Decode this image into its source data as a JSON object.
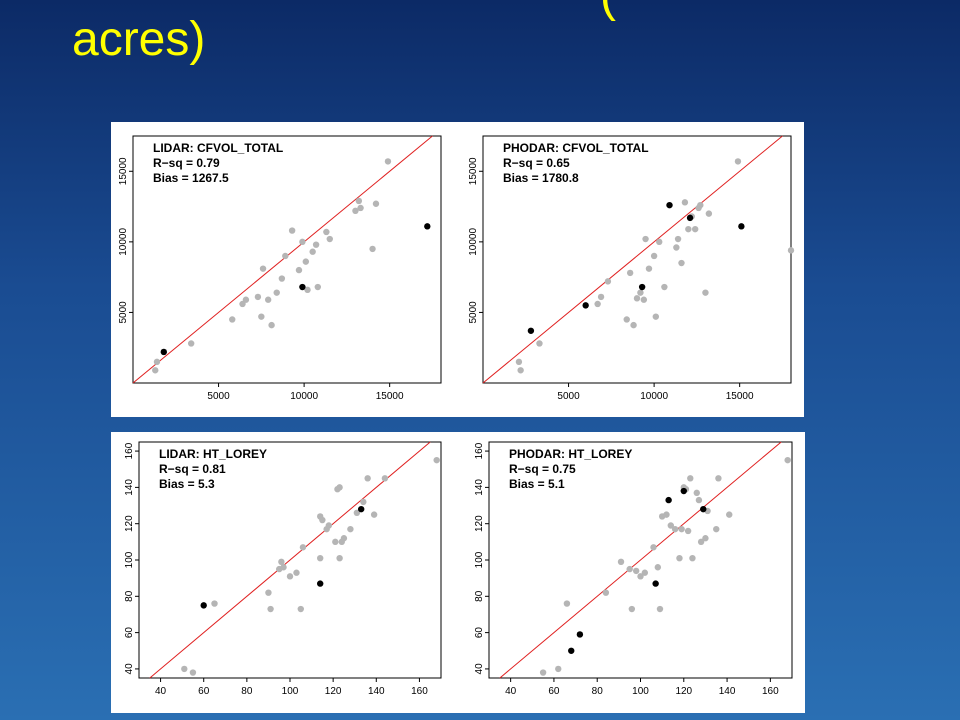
{
  "slide": {
    "title_fragment": "(",
    "title": "acres)"
  },
  "chart_data": [
    {
      "type": "scatter",
      "title": "LIDAR: CFVOL_TOTAL",
      "stats": [
        "R−sq = 0.79",
        "Bias = 1267.5"
      ],
      "xlim": [
        0,
        18000
      ],
      "ylim": [
        0,
        17500
      ],
      "xticks": [
        5000,
        10000,
        15000
      ],
      "yticks": [
        5000,
        10000,
        15000
      ],
      "reference_line": "1:1",
      "colors": {
        "observed": "#b5b5b5",
        "highlight": "#000000",
        "line": "#e02020"
      },
      "series": [
        {
          "name": "",
          "color": "#b5b5b5",
          "x": [
            1300,
            1400,
            3400,
            5800,
            6400,
            6600,
            7300,
            7500,
            7600,
            7900,
            8100,
            8400,
            8700,
            8900,
            9300,
            9700,
            9900,
            10100,
            10200,
            10500,
            10700,
            10800,
            11300,
            11500,
            13000,
            13200,
            13300,
            14000,
            14200,
            14900
          ],
          "y": [
            900,
            1500,
            2800,
            4500,
            5600,
            5900,
            6100,
            4700,
            8100,
            5900,
            4100,
            6400,
            7400,
            9000,
            10800,
            8000,
            10000,
            8600,
            6600,
            9300,
            9800,
            6800,
            10700,
            10200,
            12200,
            12900,
            12400,
            9500,
            12700,
            15700
          ]
        },
        {
          "name": "",
          "color": "#000000",
          "x": [
            1800,
            9900,
            17200
          ],
          "y": [
            2200,
            6800,
            11100
          ]
        }
      ]
    },
    {
      "type": "scatter",
      "title": "PHODAR: CFVOL_TOTAL",
      "stats": [
        "R−sq = 0.65",
        "Bias = 1780.8"
      ],
      "xlim": [
        0,
        18000
      ],
      "ylim": [
        0,
        17500
      ],
      "xticks": [
        5000,
        10000,
        15000
      ],
      "yticks": [
        5000,
        10000,
        15000
      ],
      "reference_line": "1:1",
      "colors": {
        "observed": "#b5b5b5",
        "highlight": "#000000",
        "line": "#e02020"
      },
      "series": [
        {
          "name": "",
          "color": "#b5b5b5",
          "x": [
            2100,
            2200,
            3300,
            6700,
            6900,
            7300,
            8400,
            8600,
            8800,
            9000,
            9200,
            9400,
            9500,
            9700,
            10000,
            10100,
            10300,
            10600,
            11300,
            11400,
            11600,
            11800,
            12000,
            12200,
            12400,
            12600,
            12700,
            13000,
            13200,
            14900,
            18000
          ],
          "y": [
            1500,
            900,
            2800,
            5600,
            6100,
            7200,
            4500,
            7800,
            4100,
            6000,
            6400,
            5900,
            10200,
            8100,
            9000,
            4700,
            10000,
            6800,
            9600,
            10200,
            8500,
            12800,
            10900,
            11800,
            10900,
            12400,
            12600,
            6400,
            12000,
            15700,
            9400
          ]
        },
        {
          "name": "",
          "color": "#000000",
          "x": [
            2800,
            6000,
            9300,
            10900,
            12100,
            15100
          ],
          "y": [
            3700,
            5500,
            6800,
            12600,
            11700,
            11100
          ]
        }
      ]
    },
    {
      "type": "scatter",
      "title": "LIDAR: HT_LOREY",
      "stats": [
        "R−sq = 0.81",
        "Bias = 5.3"
      ],
      "xlim": [
        30,
        170
      ],
      "ylim": [
        35,
        165
      ],
      "xticks": [
        40,
        60,
        80,
        100,
        120,
        140,
        160
      ],
      "yticks": [
        40,
        60,
        80,
        100,
        120,
        140,
        160
      ],
      "reference_line": "1:1",
      "colors": {
        "observed": "#b5b5b5",
        "highlight": "#000000",
        "line": "#e02020"
      },
      "series": [
        {
          "name": "",
          "color": "#b5b5b5",
          "x": [
            51,
            55,
            65,
            90,
            91,
            95,
            96,
            97,
            100,
            103,
            105,
            106,
            114,
            114,
            115,
            117,
            118,
            121,
            122,
            123,
            123,
            124,
            125,
            128,
            131,
            134,
            136,
            139,
            144,
            168
          ],
          "y": [
            40,
            38,
            76,
            82,
            73,
            95,
            99,
            96,
            91,
            93,
            73,
            107,
            124,
            101,
            122,
            117,
            119,
            110,
            139,
            140,
            101,
            110,
            112,
            117,
            126,
            132,
            145,
            125,
            145,
            155
          ]
        },
        {
          "name": "",
          "color": "#000000",
          "x": [
            60,
            114,
            133
          ],
          "y": [
            75,
            87,
            128
          ]
        }
      ]
    },
    {
      "type": "scatter",
      "title": "PHODAR: HT_LOREY",
      "stats": [
        "R−sq = 0.75",
        "Bias = 5.1"
      ],
      "xlim": [
        30,
        170
      ],
      "ylim": [
        35,
        165
      ],
      "xticks": [
        40,
        60,
        80,
        100,
        120,
        140,
        160
      ],
      "yticks": [
        40,
        60,
        80,
        100,
        120,
        140,
        160
      ],
      "reference_line": "1:1",
      "colors": {
        "observed": "#b5b5b5",
        "highlight": "#000000",
        "line": "#e02020"
      },
      "series": [
        {
          "name": "",
          "color": "#b5b5b5",
          "x": [
            55,
            62,
            66,
            84,
            91,
            95,
            96,
            98,
            100,
            102,
            106,
            108,
            109,
            110,
            112,
            114,
            116,
            118,
            119,
            120,
            121,
            122,
            123,
            124,
            126,
            127,
            128,
            130,
            131,
            135,
            136,
            141,
            168
          ],
          "y": [
            38,
            40,
            76,
            82,
            99,
            95,
            73,
            94,
            91,
            93,
            107,
            96,
            73,
            124,
            125,
            119,
            117,
            101,
            117,
            140,
            139,
            116,
            145,
            101,
            137,
            133,
            110,
            112,
            127,
            117,
            145,
            125,
            155
          ]
        },
        {
          "name": "",
          "color": "#000000",
          "x": [
            68,
            72,
            107,
            113,
            120,
            129
          ],
          "y": [
            50,
            59,
            87,
            133,
            138,
            128
          ]
        }
      ]
    }
  ]
}
